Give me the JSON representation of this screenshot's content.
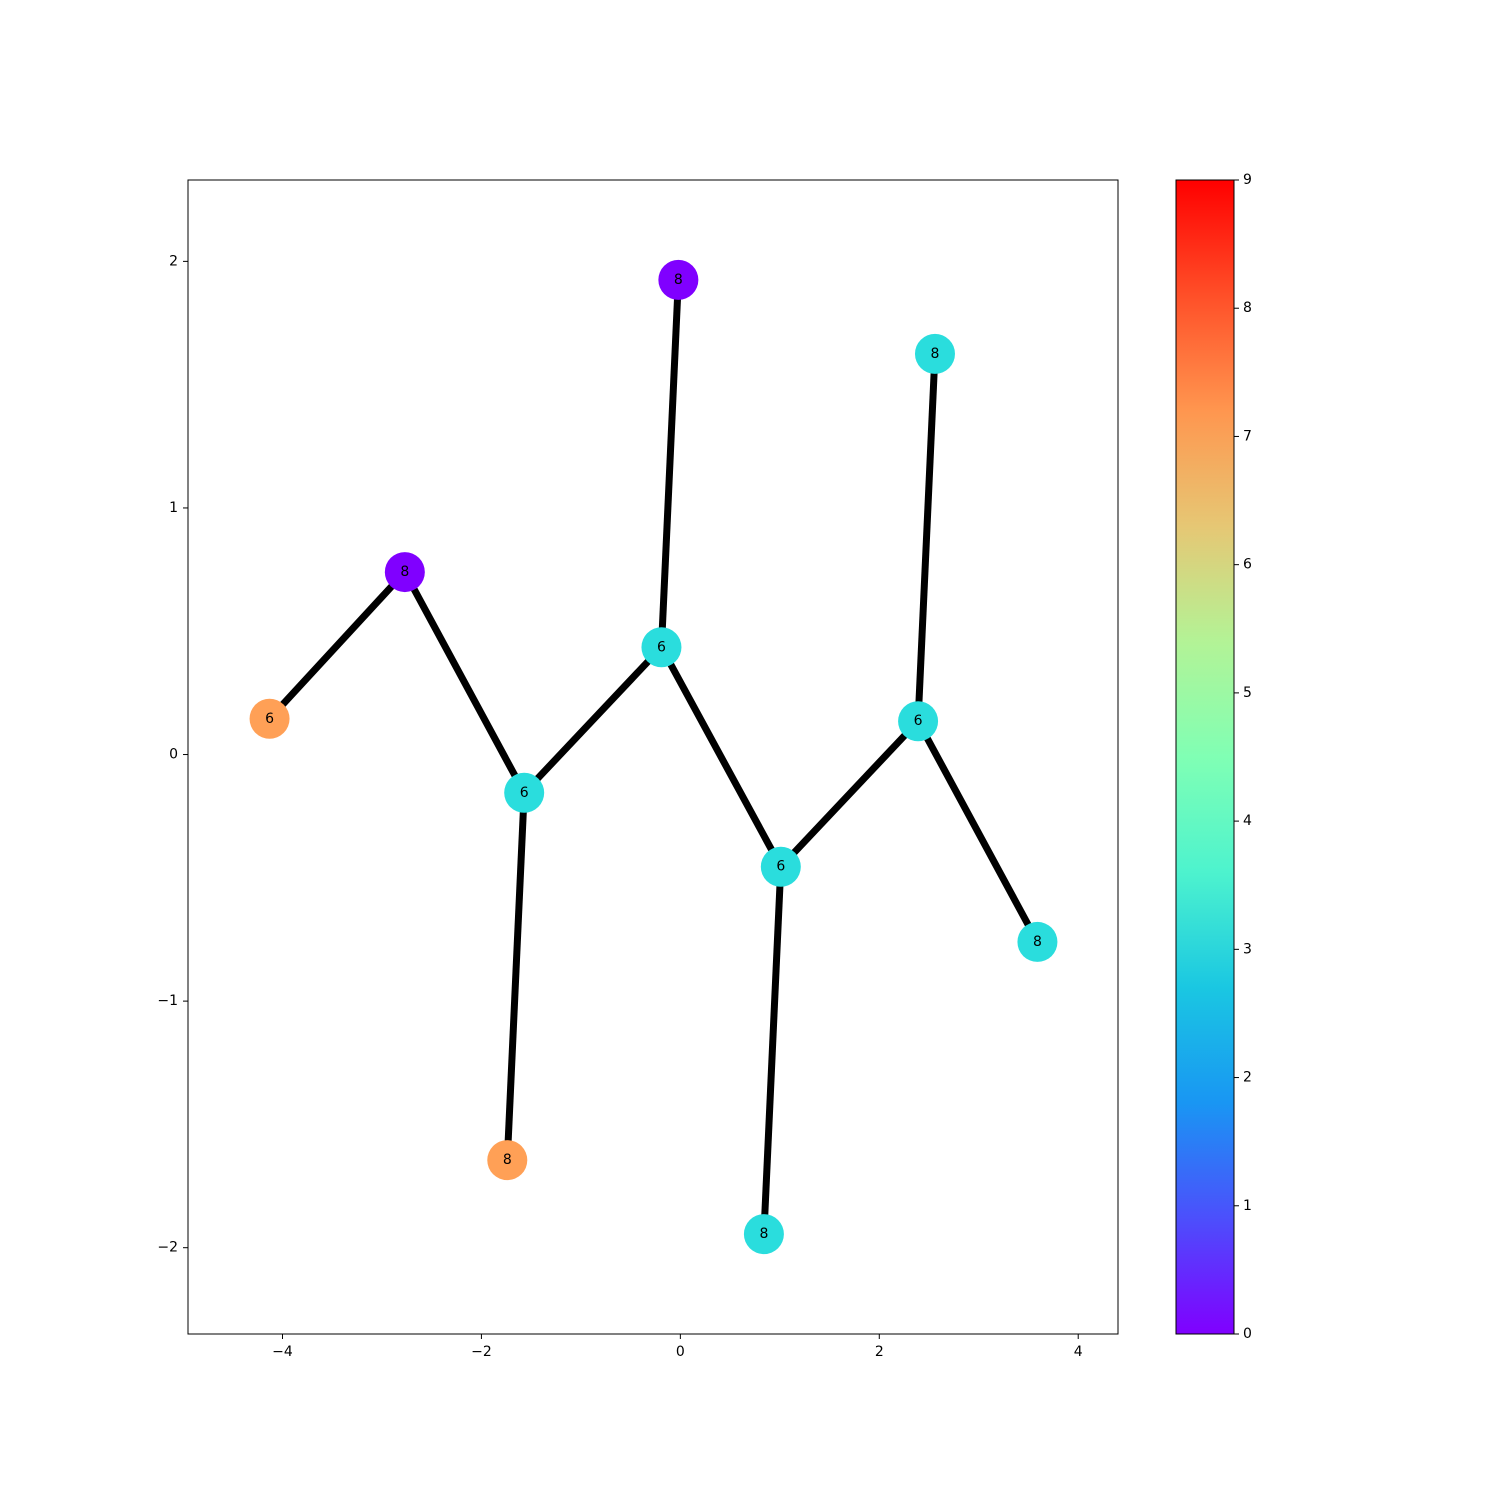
{
  "chart_data": {
    "type": "scatter",
    "kind": "network-graph",
    "xlim": [
      -4.95,
      4.4
    ],
    "ylim": [
      -2.35,
      2.33
    ],
    "x_ticks": [
      -4,
      -2,
      0,
      2,
      4
    ],
    "y_ticks": [
      -2,
      -1,
      0,
      1,
      2
    ],
    "grid": false,
    "legend": "none",
    "nodes": [
      {
        "id": "n0",
        "x": -4.13,
        "y": 0.145,
        "label": "6",
        "value": 7
      },
      {
        "id": "n1",
        "x": -2.77,
        "y": 0.74,
        "label": "8",
        "value": 0
      },
      {
        "id": "n2",
        "x": -1.57,
        "y": -0.155,
        "label": "6",
        "value": 3
      },
      {
        "id": "n3",
        "x": -0.19,
        "y": 0.435,
        "label": "6",
        "value": 3
      },
      {
        "id": "n4",
        "x": -0.02,
        "y": 1.925,
        "label": "8",
        "value": 0
      },
      {
        "id": "n5",
        "x": -1.74,
        "y": -1.645,
        "label": "8",
        "value": 7
      },
      {
        "id": "n6",
        "x": 1.01,
        "y": -0.455,
        "label": "6",
        "value": 3
      },
      {
        "id": "n7",
        "x": 0.84,
        "y": -1.945,
        "label": "8",
        "value": 3
      },
      {
        "id": "n8",
        "x": 2.39,
        "y": 0.135,
        "label": "6",
        "value": 3
      },
      {
        "id": "n9",
        "x": 2.56,
        "y": 1.625,
        "label": "8",
        "value": 3
      },
      {
        "id": "n10",
        "x": 3.59,
        "y": -0.76,
        "label": "8",
        "value": 3
      }
    ],
    "edges": [
      [
        "n0",
        "n1"
      ],
      [
        "n1",
        "n2"
      ],
      [
        "n2",
        "n3"
      ],
      [
        "n3",
        "n4"
      ],
      [
        "n2",
        "n5"
      ],
      [
        "n3",
        "n6"
      ],
      [
        "n6",
        "n7"
      ],
      [
        "n6",
        "n8"
      ],
      [
        "n8",
        "n9"
      ],
      [
        "n8",
        "n10"
      ]
    ],
    "node_colors": {
      "7": "#ffa056",
      "0": "#8000ff",
      "3": "#2adddd"
    },
    "edge_color": "#000000",
    "colorbar": {
      "min": 0,
      "max": 9,
      "ticks": [
        0,
        1,
        2,
        3,
        4,
        5,
        6,
        7,
        8,
        9
      ],
      "colormap": "rainbow",
      "stops": [
        "#8000ff",
        "#4c4ffc",
        "#1996f3",
        "#1ac7e2",
        "#4df3ce",
        "#80ffb4",
        "#b3f396",
        "#e6c774",
        "#ff964f",
        "#ff4f28",
        "#ff0000"
      ]
    }
  }
}
